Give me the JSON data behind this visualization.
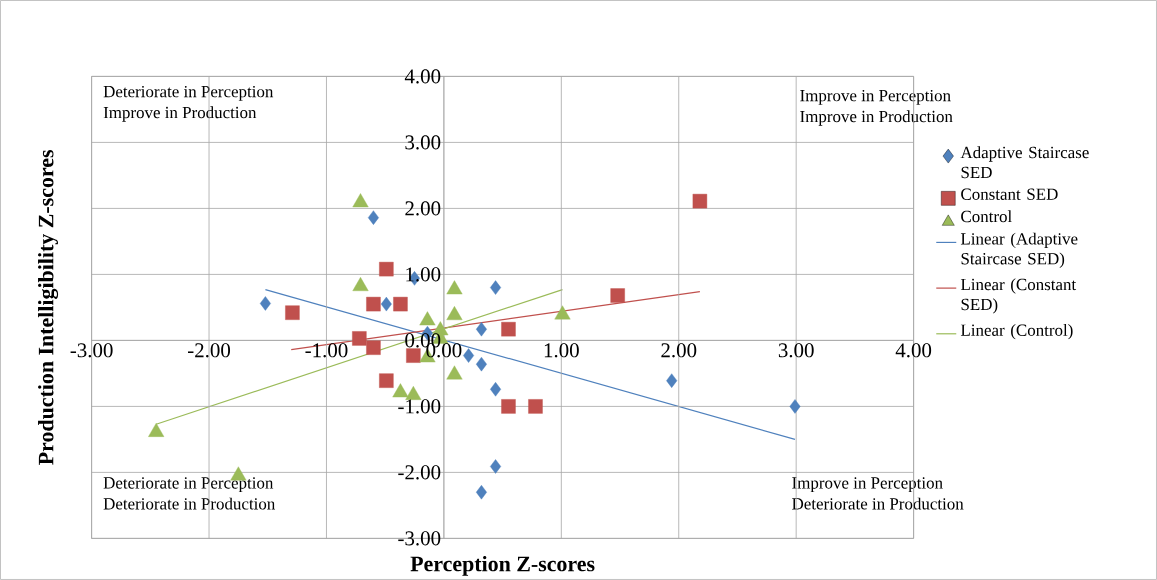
{
  "chart_data": {
    "type": "scatter",
    "xlabel": "Perception Z-scores",
    "ylabel": "Production Intelligibility Z-scores",
    "xlim": [
      -3,
      4
    ],
    "ylim": [
      -3,
      4
    ],
    "xticks": [
      {
        "value": -3,
        "label": "-3.00"
      },
      {
        "value": -2,
        "label": "-2.00"
      },
      {
        "value": -1,
        "label": "-1.00"
      },
      {
        "value": 0,
        "label": "0.00"
      },
      {
        "value": 1,
        "label": "1.00"
      },
      {
        "value": 2,
        "label": "2.00"
      },
      {
        "value": 3,
        "label": "3.00"
      },
      {
        "value": 4,
        "label": "4.00"
      }
    ],
    "yticks": [
      {
        "value": -3,
        "label": "-3.00"
      },
      {
        "value": -2,
        "label": "-2.00"
      },
      {
        "value": -1,
        "label": "-1.00"
      },
      {
        "value": 0,
        "label": "0.00"
      },
      {
        "value": 1,
        "label": "1.00"
      },
      {
        "value": 2,
        "label": "2.00"
      },
      {
        "value": 3,
        "label": "3.00"
      },
      {
        "value": 4,
        "label": "4.00"
      }
    ],
    "grid": true,
    "legend": "right",
    "annotations": [
      "Deteriorate in Perception",
      "Improve in Production",
      "Improve in Perception",
      "Improve in Production",
      "Deteriorate in Perception",
      "Deteriorate in Production",
      "Improve in Perception",
      "Deteriorate in Production"
    ],
    "series": [
      {
        "name": "Adaptive Staircase SED",
        "type": "scatter",
        "marker": "diamond",
        "color": "#4f81bd",
        "x": [
          -1.52,
          -0.6,
          -0.25,
          -0.49,
          -0.14,
          0.44,
          0.32,
          0.21,
          0.32,
          0.44,
          0.44,
          0.32,
          1.94,
          2.99
        ],
        "values": [
          0.56,
          1.86,
          0.94,
          0.55,
          0.11,
          0.8,
          0.17,
          -0.23,
          -0.36,
          -0.74,
          -1.91,
          -2.3,
          -0.61,
          -1.0
        ]
      },
      {
        "name": "Constant SED",
        "type": "scatter",
        "marker": "square",
        "color": "#c0504d",
        "x": [
          -1.29,
          -0.72,
          -0.6,
          -0.37,
          -0.49,
          -0.6,
          -0.49,
          -0.26,
          0.55,
          0.55,
          0.78,
          1.48,
          2.18
        ],
        "values": [
          0.42,
          0.03,
          0.55,
          0.55,
          1.08,
          -0.11,
          -0.61,
          -0.23,
          0.17,
          -1.0,
          -1.0,
          0.68,
          2.11
        ]
      },
      {
        "name": "Control",
        "type": "scatter",
        "marker": "triangle",
        "color": "#9bbb59",
        "x": [
          -2.45,
          -1.75,
          -0.71,
          -0.71,
          -0.37,
          -0.26,
          -0.14,
          -0.14,
          -0.03,
          -0.03,
          0.09,
          0.09,
          0.09,
          1.01
        ],
        "values": [
          -1.39,
          -2.05,
          2.09,
          0.82,
          -0.79,
          -0.83,
          0.3,
          -0.26,
          0.15,
          0.02,
          0.77,
          0.38,
          -0.52,
          0.39
        ]
      },
      {
        "name": "Linear (Adaptive Staircase SED)",
        "type": "line",
        "marker": "none",
        "color": "#4f81bd",
        "x": [
          -1.52,
          2.99
        ],
        "values": [
          0.77,
          -1.5
        ]
      },
      {
        "name": "Linear (Constant SED)",
        "type": "line",
        "marker": "none",
        "color": "#c0504d",
        "x": [
          -1.3,
          2.18
        ],
        "values": [
          -0.14,
          0.74
        ]
      },
      {
        "name": "Linear (Control)",
        "type": "line",
        "marker": "none",
        "color": "#9bbb59",
        "x": [
          -2.45,
          1.01
        ],
        "values": [
          -1.27,
          0.77
        ]
      }
    ]
  }
}
